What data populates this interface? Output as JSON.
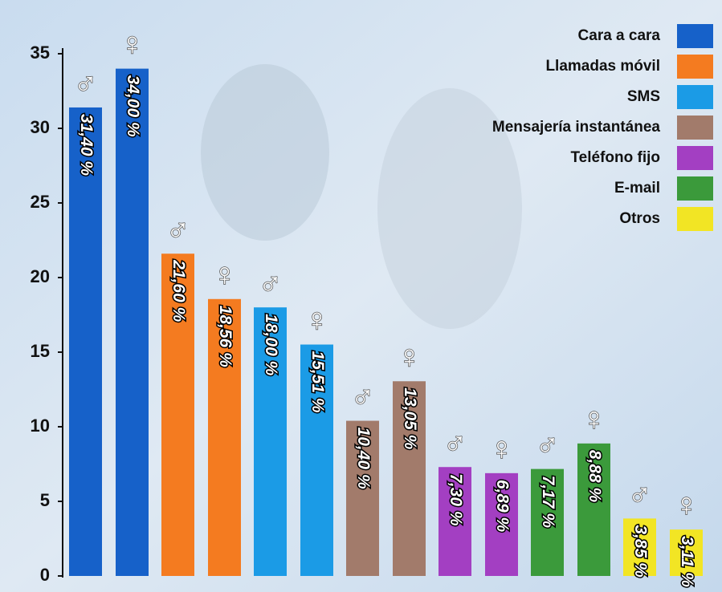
{
  "chart_data": {
    "type": "bar",
    "categories": [
      "Cara a cara",
      "Llamadas móvil",
      "SMS",
      "Mensajería instantánea",
      "Teléfono fijo",
      "E-mail",
      "Otros"
    ],
    "colors": [
      "#1661c9",
      "#f47b20",
      "#1b9be6",
      "#a27b6b",
      "#a33fc2",
      "#3b9a3b",
      "#f2e524"
    ],
    "series": [
      {
        "name": "♂",
        "values": [
          31.4,
          21.6,
          18.0,
          10.4,
          7.3,
          7.17,
          3.85
        ],
        "value_labels": [
          "31,40 %",
          "21,60 %",
          "18,00 %",
          "10,40 %",
          "7,30 %",
          "7,17 %",
          "3,85 %"
        ]
      },
      {
        "name": "♀",
        "values": [
          34.0,
          18.56,
          15.51,
          13.05,
          6.89,
          8.88,
          3.11
        ],
        "value_labels": [
          "34,00 %",
          "18,56 %",
          "15,51 %",
          "13,05 %",
          "6,89 %",
          "8,88 %",
          "3,11 %"
        ]
      }
    ],
    "ylim": [
      0,
      35
    ],
    "yticks": [
      0,
      5,
      10,
      15,
      20,
      25,
      30,
      35
    ],
    "legend": "upper right"
  }
}
